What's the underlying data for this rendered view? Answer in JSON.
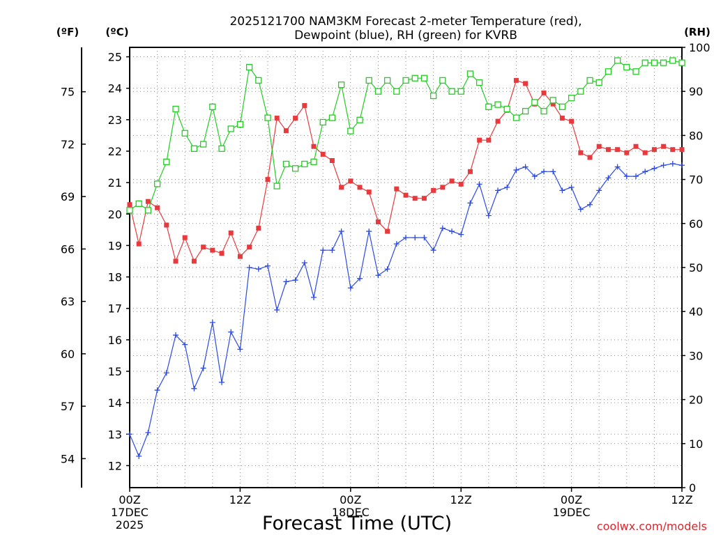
{
  "chart_data": {
    "type": "line",
    "title_line1": "2025121700 NAM3KM Forecast 2-meter Temperature (red),",
    "title_line2": "Dewpoint (blue), RH (green) for KVRB",
    "xlabel": "Forecast Time (UTC)",
    "credit": "coolwx.com/models",
    "units": {
      "fahrenheit": "(ºF)",
      "celsius": "(ºC)",
      "rh": "(RH)"
    },
    "x_unit": "forecast hour from 2025-12-17 00Z",
    "xlim": [
      0,
      60
    ],
    "x_ticks": [
      {
        "hour": 0,
        "line1": "00Z",
        "line2": "17DEC",
        "line3": "2025"
      },
      {
        "hour": 12,
        "line1": "12Z",
        "line2": "",
        "line3": ""
      },
      {
        "hour": 24,
        "line1": "00Z",
        "line2": "18DEC",
        "line3": ""
      },
      {
        "hour": 36,
        "line1": "12Z",
        "line2": "",
        "line3": ""
      },
      {
        "hour": 48,
        "line1": "00Z",
        "line2": "19DEC",
        "line3": ""
      },
      {
        "hour": 60,
        "line1": "12Z",
        "line2": "",
        "line3": ""
      }
    ],
    "celsius_axis": {
      "ylim": [
        11.3,
        25.3
      ],
      "ticks": [
        12,
        13,
        14,
        15,
        16,
        17,
        18,
        19,
        20,
        21,
        22,
        23,
        24,
        25
      ]
    },
    "fahrenheit_axis": {
      "ticks": [
        54,
        57,
        60,
        63,
        66,
        69,
        72,
        75
      ]
    },
    "rh_axis": {
      "ylim": [
        0,
        100
      ],
      "ticks": [
        0,
        10,
        20,
        30,
        40,
        50,
        60,
        70,
        80,
        90,
        100
      ]
    },
    "series": [
      {
        "name": "2-meter Temperature",
        "unit": "C",
        "color": "#e8393d",
        "marker": "filled-square",
        "values": [
          20.3,
          19.05,
          20.4,
          20.2,
          19.65,
          18.5,
          19.25,
          18.5,
          18.95,
          18.85,
          18.75,
          19.4,
          18.65,
          18.95,
          19.55,
          21.1,
          23.05,
          22.65,
          23.05,
          23.45,
          22.15,
          21.9,
          21.7,
          20.85,
          21.05,
          20.85,
          20.7,
          19.75,
          19.45,
          20.8,
          20.6,
          20.5,
          20.5,
          20.75,
          20.85,
          21.05,
          20.95,
          21.35,
          22.35,
          22.35,
          22.95,
          23.3,
          24.25,
          24.15,
          23.5,
          23.85,
          23.5,
          23.05,
          22.95,
          21.95,
          21.8,
          22.15,
          22.05,
          22.05,
          21.95,
          22.15,
          21.95,
          22.05,
          22.15,
          22.05,
          22.05
        ]
      },
      {
        "name": "Dewpoint",
        "unit": "C",
        "color": "#2a49e6",
        "marker": "plus",
        "values": [
          13.0,
          12.3,
          13.05,
          14.4,
          14.95,
          16.15,
          15.85,
          14.45,
          15.1,
          16.55,
          14.65,
          16.25,
          15.7,
          18.3,
          18.25,
          18.35,
          16.95,
          17.85,
          17.9,
          18.45,
          17.35,
          18.85,
          18.85,
          19.45,
          17.65,
          17.95,
          19.45,
          18.05,
          18.25,
          19.05,
          19.25,
          19.25,
          19.25,
          18.85,
          19.55,
          19.45,
          19.35,
          20.35,
          20.95,
          19.95,
          20.75,
          20.85,
          21.4,
          21.5,
          21.2,
          21.35,
          21.35,
          20.75,
          20.85,
          20.15,
          20.3,
          20.75,
          21.15,
          21.5,
          21.2,
          21.2,
          21.35,
          21.45,
          21.55,
          21.6,
          21.55
        ]
      },
      {
        "name": "Relative Humidity",
        "unit": "%",
        "color": "#22cc22",
        "marker": "open-square",
        "values": [
          63,
          64.5,
          63,
          69,
          74,
          86,
          80.5,
          77,
          78,
          86.5,
          77,
          81.5,
          82.5,
          95.5,
          92.5,
          84,
          68.5,
          73.5,
          72.5,
          73.5,
          74,
          83,
          84,
          91.5,
          81,
          83.5,
          92.5,
          90,
          92.5,
          90,
          92.5,
          93,
          93,
          89,
          92.5,
          90,
          90,
          94,
          92,
          86.5,
          87,
          86,
          84,
          85.5,
          87.5,
          85.5,
          88,
          86.5,
          88.5,
          90,
          92.5,
          92,
          94.5,
          97,
          95.5,
          94.5,
          96.5,
          96.5,
          96.5,
          97,
          96.5
        ]
      }
    ]
  }
}
